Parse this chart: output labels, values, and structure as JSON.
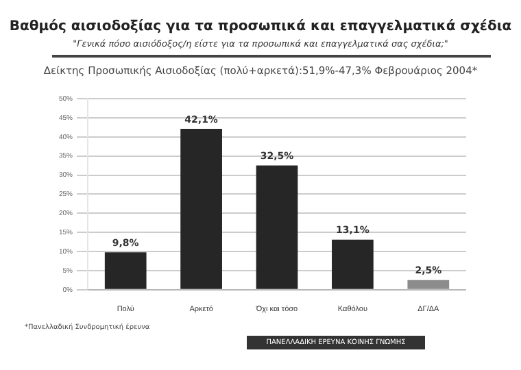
{
  "chart_data": {
    "type": "bar",
    "title": "Βαθμός αισιοδοξίας για τα προσωπικά και επαγγελματικά σχέδια",
    "subtitle": "\"Γενικά πόσο αισιόδοξος/η είστε για τα προσωπικά και επαγγελματικά σας σχέδια;\"",
    "annotations": [
      "Δείκτης Προσωπικής Αισιοδοξίας (πολύ+αρκετά):51,9%-47,3% Φεβρουάριος 2004*",
      "*Πανελλαδική Συνδρομητική έρευνα",
      "ΠΑΝΕΛΛΑΔΙΚΗ ΕΡΕΥΝΑ ΚΟΙΝΗΣ ΓΝΩΜΗΣ"
    ],
    "categories": [
      "Πολύ",
      "Αρκετό",
      "Όχι και τόσο",
      "Καθόλου",
      "ΔΓ/ΔΑ"
    ],
    "values": [
      9.8,
      42.1,
      32.5,
      13.1,
      2.5
    ],
    "colors": [
      "#262626",
      "#262626",
      "#262626",
      "#262626",
      "#8c8c8c"
    ],
    "value_labels": [
      "9,8%",
      "42,1%",
      "32,5%",
      "13,1%",
      "2,5%"
    ],
    "ylim": [
      0,
      50
    ],
    "yticks": [
      {
        "value": 0,
        "label": "0%"
      },
      {
        "value": 5,
        "label": "5%"
      },
      {
        "value": 10,
        "label": "10%"
      },
      {
        "value": 15,
        "label": "15%"
      },
      {
        "value": 20,
        "label": "20%"
      },
      {
        "value": 25,
        "label": "25%"
      },
      {
        "value": 30,
        "label": "30%"
      },
      {
        "value": 35,
        "label": "35%"
      },
      {
        "value": 40,
        "label": "40%"
      },
      {
        "value": 45,
        "label": "45%"
      },
      {
        "value": 50,
        "label": "50%"
      }
    ],
    "grid": "y"
  }
}
